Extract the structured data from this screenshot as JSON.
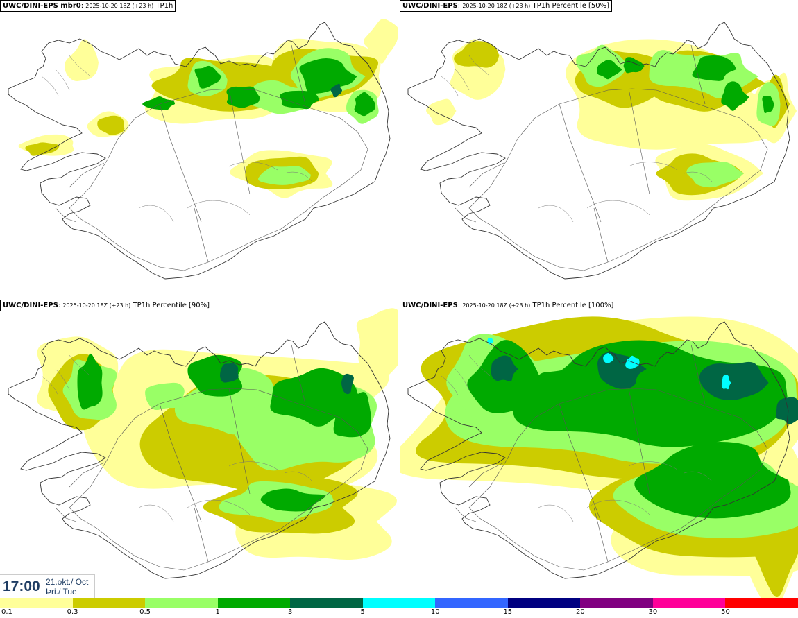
{
  "panels": [
    {
      "model": "UWC/DINI-EPS mbr0",
      "run": "2025-10-20 18Z (+23 h)",
      "field": "TP1h",
      "coverage": "low"
    },
    {
      "model": "UWC/DINI-EPS",
      "run": "2025-10-20 18Z (+23 h)",
      "field": "TP1h Percentile [50%]",
      "coverage": "medium"
    },
    {
      "model": "UWC/DINI-EPS",
      "run": "2025-10-20 18Z (+23 h)",
      "field": "TP1h Percentile [90%]",
      "coverage": "high"
    },
    {
      "model": "UWC/DINI-EPS",
      "run": "2025-10-20 18Z (+23 h)",
      "field": "TP1h Percentile [100%]",
      "coverage": "max"
    }
  ],
  "valid_time": {
    "time": "17:00",
    "date_line1": "21.okt./ Oct",
    "date_line2": "Þri./ Tue"
  },
  "legend": {
    "ticks": [
      "0.1",
      "0.3",
      "0.5",
      "1",
      "3",
      "5",
      "10",
      "15",
      "20",
      "30",
      "50"
    ],
    "colors": [
      "#ffff99",
      "#cccc00",
      "#99ff66",
      "#00aa00",
      "#006644",
      "#00ffff",
      "#3366ff",
      "#000080",
      "#800080",
      "#ff0099",
      "#ff0000"
    ]
  },
  "colors": {
    "precip_0.1": "#ffff99",
    "precip_0.3": "#cccc00",
    "precip_0.5": "#99ff66",
    "precip_1": "#00aa00",
    "precip_3": "#006644",
    "precip_5": "#00ffff",
    "coast": "#333333"
  }
}
